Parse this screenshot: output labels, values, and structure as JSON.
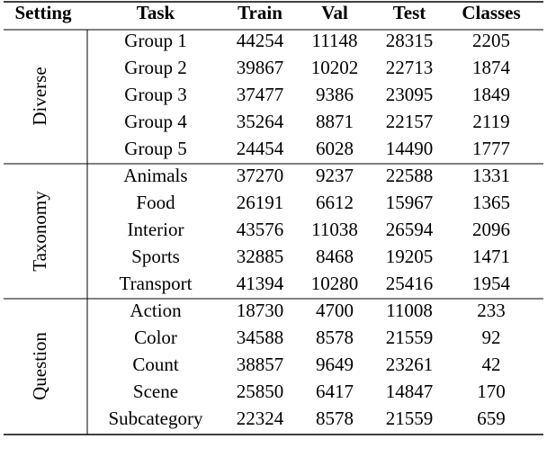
{
  "table": {
    "header": [
      "Setting",
      "Task",
      "Train",
      "Val",
      "Test",
      "Classes"
    ],
    "groups": [
      {
        "setting": "Diverse",
        "rows": [
          [
            "Group 1",
            44254,
            11148,
            28315,
            2205
          ],
          [
            "Group 2",
            39867,
            10202,
            22713,
            1874
          ],
          [
            "Group 3",
            37477,
            9386,
            23095,
            1849
          ],
          [
            "Group 4",
            35264,
            8871,
            22157,
            2119
          ],
          [
            "Group 5",
            24454,
            6028,
            14490,
            1777
          ]
        ]
      },
      {
        "setting": "Taxonomy",
        "rows": [
          [
            "Animals",
            37270,
            9237,
            22588,
            1331
          ],
          [
            "Food",
            26191,
            6612,
            15967,
            1365
          ],
          [
            "Interior",
            43576,
            11038,
            26594,
            2096
          ],
          [
            "Sports",
            32885,
            8468,
            19205,
            1471
          ],
          [
            "Transport",
            41394,
            10280,
            25416,
            1954
          ]
        ]
      },
      {
        "setting": "Question",
        "rows": [
          [
            "Action",
            18730,
            4700,
            11008,
            233
          ],
          [
            "Color",
            34588,
            8578,
            21559,
            92
          ],
          [
            "Count",
            38857,
            9649,
            23261,
            42
          ],
          [
            "Scene",
            25850,
            6417,
            14847,
            170
          ],
          [
            "Subcategory",
            22324,
            8578,
            21559,
            659
          ]
        ]
      }
    ]
  }
}
